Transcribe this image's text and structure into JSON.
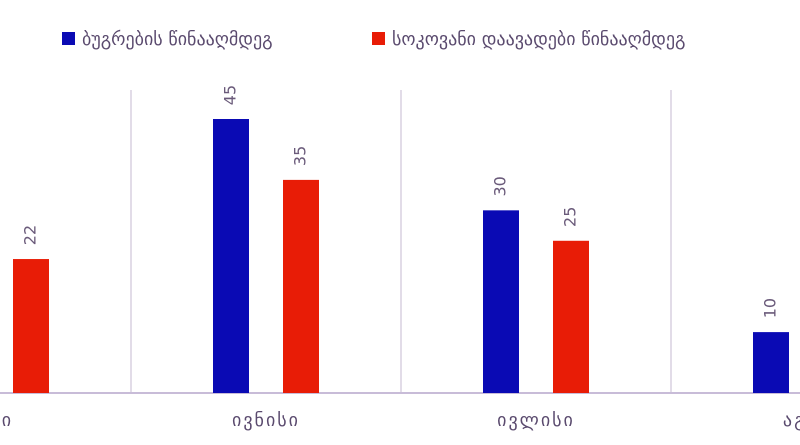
{
  "chart_data": {
    "type": "bar",
    "categories": [
      "ისი",
      "ივნისი",
      "ივლისი",
      "აგვი"
    ],
    "series": [
      {
        "name": "ბუგრების წინააღმდეგ",
        "color": "#0a0ab4",
        "values": [
          null,
          45,
          30,
          10
        ]
      },
      {
        "name": "სოკოვანი დაავადები წინააღმდეგ",
        "color": "#e81c06",
        "values": [
          22,
          35,
          25,
          null
        ]
      }
    ],
    "legend": "top"
  }
}
